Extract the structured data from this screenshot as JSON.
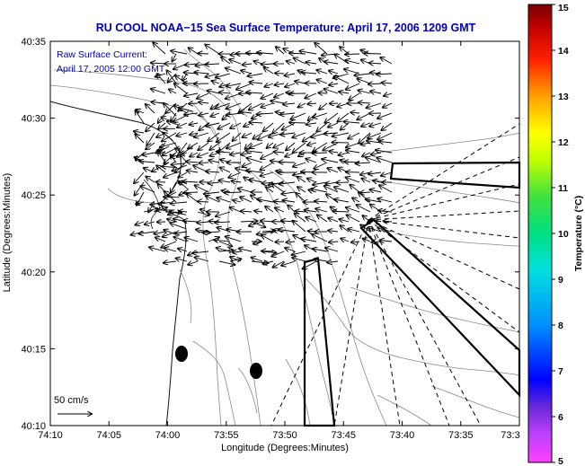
{
  "title": "RU COOL  NOAA−15  Sea Surface Temperature:  April 17, 2006 1209 GMT",
  "annotation": {
    "line1": "Raw Surface Current:",
    "line2": "April 17, 2005 12:00 GMT"
  },
  "scale_label": "50 cm/s",
  "x_axis": {
    "label": "Longitude (Degrees:Minutes)",
    "ticks": [
      "74:10",
      "74:05",
      "74:00",
      "73:55",
      "73:50",
      "73:45",
      "73:40",
      "73:35",
      "73:3"
    ]
  },
  "y_axis": {
    "label": "Latitude (Degrees:Minutes)",
    "ticks": [
      "40:35",
      "40:30",
      "40:25",
      "40:20",
      "40:15",
      "40:10"
    ]
  },
  "colorbar": {
    "label": "Temperature (°C)",
    "ticks": [
      "15",
      "14",
      "13",
      "12",
      "11",
      "10",
      "9",
      "8",
      "7",
      "6",
      "5"
    ],
    "colors": [
      "#ff40ff",
      "#6b2ad8",
      "#0000ff",
      "#00a0ff",
      "#00e0e0",
      "#00e080",
      "#40e040",
      "#c0ff00",
      "#ffff00",
      "#ffc000",
      "#ff8000",
      "#ff2000",
      "#c00000",
      "#7a0000"
    ]
  }
}
